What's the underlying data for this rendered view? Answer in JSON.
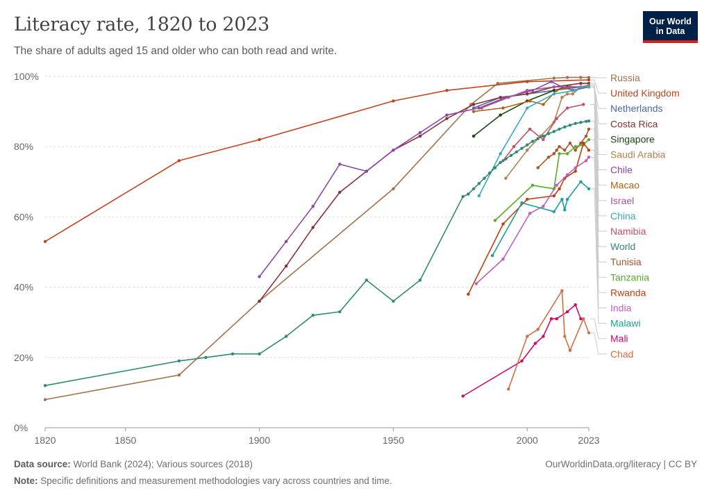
{
  "header": {
    "title": "Literacy rate, 1820 to 2023",
    "subtitle": "The share of adults aged 15 and older who can both read and write.",
    "logo_line1": "Our World",
    "logo_line2": "in Data"
  },
  "footer": {
    "source_label": "Data source:",
    "source_text": "World Bank (2024); Various sources (2018)",
    "note_label": "Note:",
    "note_text": "Specific definitions and measurement methodologies vary across countries and time.",
    "link": "OurWorldinData.org/literacy | CC BY"
  },
  "chart_data": {
    "type": "line",
    "title": "Literacy rate, 1820 to 2023",
    "xlabel": "",
    "ylabel": "",
    "xlim": [
      1820,
      2023
    ],
    "ylim": [
      0,
      100
    ],
    "x_ticks": [
      1820,
      1850,
      1900,
      1950,
      2000,
      2023
    ],
    "x_tick_labels": [
      "1820",
      "1850",
      "1900",
      "1950",
      "2000",
      "2023"
    ],
    "y_ticks": [
      0,
      20,
      40,
      60,
      80,
      100
    ],
    "y_tick_labels": [
      "0%",
      "20%",
      "40%",
      "60%",
      "80%",
      "100%"
    ],
    "grid": true,
    "legend": "right",
    "series": [
      {
        "name": "Russia",
        "color": "#a2714a",
        "points": [
          [
            1820,
            8
          ],
          [
            1870,
            15
          ],
          [
            1900,
            36
          ],
          [
            1950,
            68
          ],
          [
            1979,
            92
          ],
          [
            1989,
            98
          ],
          [
            2010,
            99.5
          ],
          [
            2015,
            99.7
          ],
          [
            2020,
            99.7
          ],
          [
            2023,
            99.7
          ]
        ]
      },
      {
        "name": "United Kingdom",
        "color": "#c0441c",
        "points": [
          [
            1820,
            53
          ],
          [
            1870,
            76
          ],
          [
            1900,
            82
          ],
          [
            1950,
            93
          ],
          [
            1970,
            96
          ],
          [
            2000,
            98.5
          ],
          [
            2023,
            99
          ]
        ]
      },
      {
        "name": "Netherlands",
        "color": "#4c6a9c",
        "points": [
          [
            1980,
            91
          ],
          [
            1990,
            94
          ],
          [
            2000,
            95
          ],
          [
            2010,
            96
          ],
          [
            2020,
            97
          ],
          [
            2023,
            97
          ]
        ]
      },
      {
        "name": "Costa Rica",
        "color": "#883039",
        "points": [
          [
            1900,
            36
          ],
          [
            1910,
            46
          ],
          [
            1920,
            57
          ],
          [
            1930,
            67
          ],
          [
            1940,
            73
          ],
          [
            1950,
            79
          ],
          [
            1960,
            83
          ],
          [
            1970,
            88
          ],
          [
            1980,
            92
          ],
          [
            1990,
            94
          ],
          [
            2000,
            95
          ],
          [
            2010,
            97
          ],
          [
            2020,
            98
          ],
          [
            2023,
            98
          ]
        ]
      },
      {
        "name": "Singapore",
        "color": "#18470f",
        "points": [
          [
            1980,
            83
          ],
          [
            1990,
            89
          ],
          [
            2000,
            93
          ],
          [
            2010,
            96
          ],
          [
            2015,
            97
          ],
          [
            2020,
            97
          ],
          [
            2023,
            97.5
          ]
        ]
      },
      {
        "name": "Saudi Arabia",
        "color": "#b3804f",
        "points": [
          [
            1992,
            71
          ],
          [
            2000,
            79
          ],
          [
            2005,
            83
          ],
          [
            2010,
            87
          ],
          [
            2013,
            94
          ],
          [
            2015,
            95
          ],
          [
            2017,
            95
          ],
          [
            2020,
            97
          ],
          [
            2023,
            97.5
          ]
        ]
      },
      {
        "name": "Chile",
        "color": "#8a47a5",
        "points": [
          [
            1900,
            43
          ],
          [
            1910,
            53
          ],
          [
            1920,
            63
          ],
          [
            1930,
            75
          ],
          [
            1940,
            73
          ],
          [
            1950,
            79
          ],
          [
            1960,
            84
          ],
          [
            1970,
            89
          ],
          [
            1982,
            91
          ],
          [
            1992,
            94
          ],
          [
            2002,
            96
          ],
          [
            2009,
            98.5
          ],
          [
            2013,
            97
          ],
          [
            2017,
            96
          ],
          [
            2023,
            97
          ]
        ]
      },
      {
        "name": "Macao",
        "color": "#b16214",
        "points": [
          [
            1980,
            90
          ],
          [
            1991,
            91
          ],
          [
            2001,
            93
          ],
          [
            2006,
            92
          ],
          [
            2011,
            96
          ],
          [
            2016,
            97
          ],
          [
            2023,
            97
          ]
        ]
      },
      {
        "name": "Israel",
        "color": "#a2559c",
        "points": [
          [
            1983,
            91
          ],
          [
            1993,
            94
          ],
          [
            2000,
            96
          ],
          [
            2010,
            97
          ],
          [
            2020,
            97
          ],
          [
            2023,
            97
          ]
        ]
      },
      {
        "name": "China",
        "color": "#38aaba",
        "points": [
          [
            1982,
            66
          ],
          [
            1990,
            78
          ],
          [
            2000,
            91
          ],
          [
            2010,
            95
          ],
          [
            2018,
            96
          ],
          [
            2020,
            97
          ],
          [
            2023,
            97
          ]
        ]
      },
      {
        "name": "Namibia",
        "color": "#c15065",
        "points": [
          [
            1991,
            76
          ],
          [
            1995,
            80
          ],
          [
            2001,
            85
          ],
          [
            2006,
            82
          ],
          [
            2011,
            88
          ],
          [
            2015,
            91
          ],
          [
            2021,
            92
          ]
        ]
      },
      {
        "name": "World",
        "color": "#2e8b72",
        "points": [
          [
            1820,
            12
          ],
          [
            1870,
            19
          ],
          [
            1880,
            20
          ],
          [
            1890,
            21
          ],
          [
            1900,
            21
          ],
          [
            1910,
            26
          ],
          [
            1920,
            32
          ],
          [
            1930,
            33
          ],
          [
            1940,
            42
          ],
          [
            1950,
            36
          ],
          [
            1960,
            42
          ],
          [
            1976,
            65.8
          ],
          [
            1978,
            66.5
          ],
          [
            1980,
            68
          ],
          [
            1982,
            69.5
          ],
          [
            1984,
            71
          ],
          [
            1986,
            72.5
          ],
          [
            1988,
            74
          ],
          [
            1990,
            75.5
          ],
          [
            1992,
            76.5
          ],
          [
            1994,
            77.5
          ],
          [
            1996,
            78.5
          ],
          [
            1998,
            79.5
          ],
          [
            2000,
            80.5
          ],
          [
            2002,
            81.5
          ],
          [
            2004,
            82.3
          ],
          [
            2006,
            83
          ],
          [
            2008,
            83.7
          ],
          [
            2010,
            84.3
          ],
          [
            2012,
            85
          ],
          [
            2014,
            85.6
          ],
          [
            2016,
            86.1
          ],
          [
            2018,
            86.6
          ],
          [
            2020,
            86.9
          ],
          [
            2022,
            87.2
          ],
          [
            2023,
            87.3
          ]
        ]
      },
      {
        "name": "Tunisia",
        "color": "#a65628",
        "points": [
          [
            2004,
            74
          ],
          [
            2008,
            77
          ],
          [
            2010,
            78
          ],
          [
            2011,
            79
          ],
          [
            2012,
            80
          ],
          [
            2014,
            79
          ],
          [
            2016,
            81
          ],
          [
            2018,
            79
          ],
          [
            2020,
            81
          ],
          [
            2022,
            83
          ],
          [
            2023,
            85
          ]
        ]
      },
      {
        "name": "Tanzania",
        "color": "#58ac2c",
        "points": [
          [
            1988,
            59
          ],
          [
            2002,
            69
          ],
          [
            2010,
            68
          ],
          [
            2012,
            78
          ],
          [
            2015,
            78
          ],
          [
            2018,
            80
          ],
          [
            2021,
            80.5
          ],
          [
            2023,
            82
          ]
        ]
      },
      {
        "name": "Rwanda",
        "color": "#c03f0f",
        "points": [
          [
            1978,
            38
          ],
          [
            1991,
            58
          ],
          [
            2000,
            65
          ],
          [
            2010,
            66
          ],
          [
            2012,
            68
          ],
          [
            2014,
            71
          ],
          [
            2018,
            73
          ],
          [
            2021,
            81
          ],
          [
            2023,
            79
          ]
        ]
      },
      {
        "name": "India",
        "color": "#be5fb8",
        "points": [
          [
            1981,
            41
          ],
          [
            1991,
            48
          ],
          [
            2001,
            61
          ],
          [
            2006,
            63
          ],
          [
            2011,
            69
          ],
          [
            2015,
            72
          ],
          [
            2018,
            74
          ],
          [
            2022,
            76
          ],
          [
            2023,
            77
          ]
        ]
      },
      {
        "name": "Malawi",
        "color": "#1d9e99",
        "points": [
          [
            1987,
            49
          ],
          [
            1998,
            64
          ],
          [
            2010,
            61.5
          ],
          [
            2013,
            65
          ],
          [
            2014,
            62
          ],
          [
            2015,
            65
          ],
          [
            2020,
            70
          ],
          [
            2023,
            68
          ]
        ]
      },
      {
        "name": "Mali",
        "color": "#cf0a66",
        "points": [
          [
            1976,
            9
          ],
          [
            1998,
            19
          ],
          [
            2003,
            24
          ],
          [
            2006,
            26
          ],
          [
            2009,
            31
          ],
          [
            2011,
            31
          ],
          [
            2015,
            33
          ],
          [
            2018,
            35
          ],
          [
            2020,
            31
          ]
        ]
      },
      {
        "name": "Chad",
        "color": "#d26e44",
        "points": [
          [
            1993,
            11
          ],
          [
            2000,
            26
          ],
          [
            2004,
            28
          ],
          [
            2013,
            39
          ],
          [
            2014,
            26
          ],
          [
            2016,
            22
          ],
          [
            2021,
            31
          ],
          [
            2023,
            27
          ]
        ]
      }
    ]
  }
}
